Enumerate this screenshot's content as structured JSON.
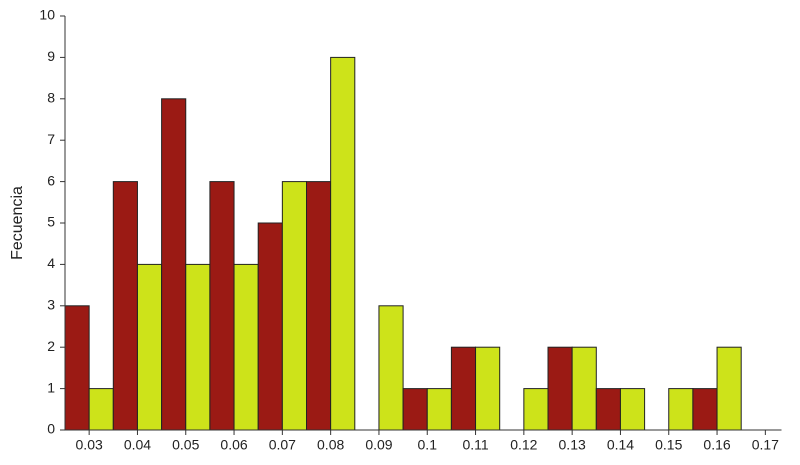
{
  "chart_data": {
    "type": "bar",
    "y_label": "Fecuencia",
    "categories": [
      "0.03",
      "0.04",
      "0.05",
      "0.06",
      "0.07",
      "0.08",
      "0.09",
      "0.1",
      "0.11",
      "0.12",
      "0.13",
      "0.14",
      "0.15",
      "0.16",
      "0.17"
    ],
    "series": [
      {
        "color": "#9b1a14",
        "values": [
          3,
          6,
          8,
          6,
          5,
          6,
          0,
          1,
          2,
          0,
          2,
          1,
          0,
          1,
          0
        ]
      },
      {
        "color": "#cde31a",
        "values": [
          1,
          4,
          4,
          4,
          6,
          9,
          3,
          1,
          2,
          1,
          2,
          1,
          1,
          2,
          0
        ]
      }
    ],
    "ylim": [
      0,
      10
    ],
    "yticks": [
      0,
      1,
      2,
      3,
      4,
      5,
      6,
      7,
      8,
      9,
      10
    ],
    "grid": false
  }
}
